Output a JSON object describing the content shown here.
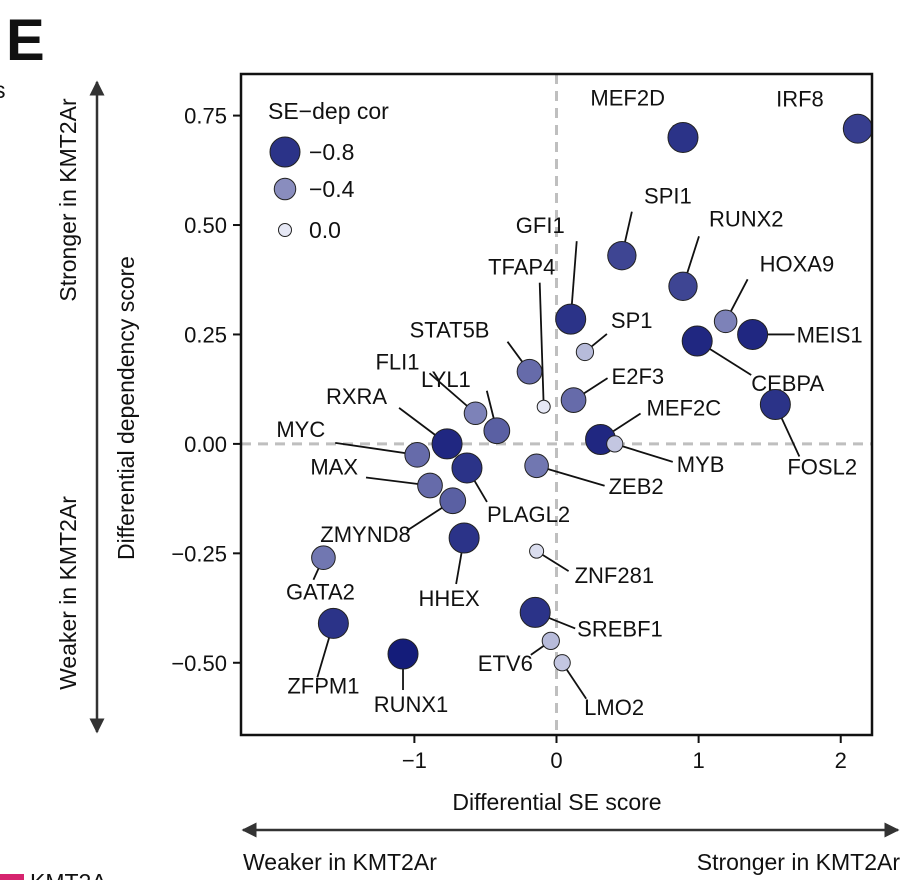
{
  "panel_letter": "E",
  "edge_text_left": "s",
  "edge_text_bottom": "KMT2A",
  "chart_data": {
    "type": "scatter",
    "title": "",
    "xlabel": "Differential SE score",
    "ylabel": "Differential dependency score",
    "xlim": [
      -2.22,
      2.22
    ],
    "ylim": [
      -0.665,
      0.845
    ],
    "xticks": [
      -1,
      0,
      1,
      2
    ],
    "xtick_labels": [
      "−1",
      "0",
      "1",
      "2"
    ],
    "yticks": [
      0.75,
      0.5,
      0.25,
      0.0,
      -0.25,
      -0.5
    ],
    "ytick_labels": [
      "0.75",
      "0.50",
      "0.25",
      "0.00",
      "−0.25",
      "−0.50"
    ],
    "reference_lines": {
      "x": 0,
      "y": 0,
      "style": "dashed",
      "color": "#bfbfbf"
    },
    "grid": false,
    "legend": {
      "title": "SE−dep cor",
      "position": "top-left",
      "entries": [
        {
          "label": "−0.8",
          "value": -0.8
        },
        {
          "label": "−0.4",
          "value": -0.4
        },
        {
          "label": "0.0",
          "value": 0.0
        }
      ]
    },
    "x_direction_labels": {
      "negative": "Weaker in KMT2Ar",
      "positive": "Stronger in KMT2Ar"
    },
    "y_direction_labels": {
      "negative": "Weaker in KMT2Ar",
      "positive": "Stronger in KMT2Ar"
    },
    "color_scale": {
      "low": "#e6e8f5",
      "high": "#141c7a"
    },
    "points": [
      {
        "label": "IRF8",
        "x": 2.12,
        "y": 0.72,
        "cor": -0.75
      },
      {
        "label": "MEF2D",
        "x": 0.89,
        "y": 0.7,
        "cor": -0.8
      },
      {
        "label": "SPI1",
        "x": 0.46,
        "y": 0.43,
        "cor": -0.72
      },
      {
        "label": "RUNX2",
        "x": 0.89,
        "y": 0.36,
        "cor": -0.72
      },
      {
        "label": "HOXA9",
        "x": 1.19,
        "y": 0.28,
        "cor": -0.45
      },
      {
        "label": "MEIS1",
        "x": 1.38,
        "y": 0.25,
        "cor": -0.85
      },
      {
        "label": "CEBPA",
        "x": 0.99,
        "y": 0.235,
        "cor": -0.85
      },
      {
        "label": "GFI1",
        "x": 0.1,
        "y": 0.285,
        "cor": -0.8
      },
      {
        "label": "SP1",
        "x": 0.2,
        "y": 0.21,
        "cor": -0.2
      },
      {
        "label": "TFAP4",
        "x": -0.09,
        "y": 0.085,
        "cor": 0.0
      },
      {
        "label": "STAT5B",
        "x": -0.19,
        "y": 0.165,
        "cor": -0.55
      },
      {
        "label": "E2F3",
        "x": 0.12,
        "y": 0.1,
        "cor": -0.55
      },
      {
        "label": "FOSL2",
        "x": 1.54,
        "y": 0.09,
        "cor": -0.8
      },
      {
        "label": "MEF2C",
        "x": 0.31,
        "y": 0.01,
        "cor": -0.85
      },
      {
        "label": "MYB",
        "x": 0.41,
        "y": 0.0,
        "cor": -0.15
      },
      {
        "label": "FLI1",
        "x": -0.57,
        "y": 0.07,
        "cor": -0.45
      },
      {
        "label": "LYL1",
        "x": -0.42,
        "y": 0.03,
        "cor": -0.6
      },
      {
        "label": "RXRA",
        "x": -0.77,
        "y": 0.0,
        "cor": -0.85
      },
      {
        "label": "MYC",
        "x": -0.98,
        "y": -0.025,
        "cor": -0.55
      },
      {
        "label": "MAX",
        "x": -0.89,
        "y": -0.095,
        "cor": -0.55
      },
      {
        "label": "ZMYND8",
        "x": -0.73,
        "y": -0.13,
        "cor": -0.6
      },
      {
        "label": "PLAGL2",
        "x": -0.63,
        "y": -0.055,
        "cor": -0.8
      },
      {
        "label": "ZEB2",
        "x": -0.14,
        "y": -0.05,
        "cor": -0.5
      },
      {
        "label": "HHEX",
        "x": -0.65,
        "y": -0.215,
        "cor": -0.8
      },
      {
        "label": "ZNF281",
        "x": -0.14,
        "y": -0.245,
        "cor": -0.05
      },
      {
        "label": "GATA2",
        "x": -1.64,
        "y": -0.26,
        "cor": -0.5
      },
      {
        "label": "SREBF1",
        "x": -0.15,
        "y": -0.385,
        "cor": -0.8
      },
      {
        "label": "ETV6",
        "x": -0.04,
        "y": -0.45,
        "cor": -0.2
      },
      {
        "label": "LMO2",
        "x": 0.04,
        "y": -0.5,
        "cor": -0.15
      },
      {
        "label": "ZFPM1",
        "x": -1.57,
        "y": -0.41,
        "cor": -0.8
      },
      {
        "label": "RUNX1",
        "x": -1.08,
        "y": -0.48,
        "cor": -0.9
      }
    ]
  }
}
